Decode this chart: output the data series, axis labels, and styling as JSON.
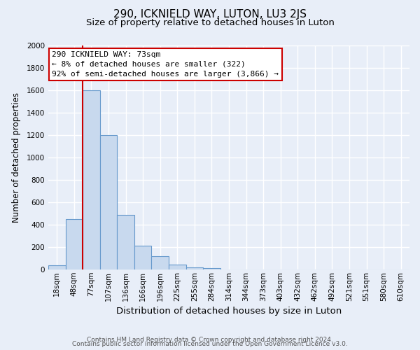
{
  "title": "290, ICKNIELD WAY, LUTON, LU3 2JS",
  "subtitle": "Size of property relative to detached houses in Luton",
  "xlabel": "Distribution of detached houses by size in Luton",
  "ylabel": "Number of detached properties",
  "bar_labels": [
    "18sqm",
    "48sqm",
    "77sqm",
    "107sqm",
    "136sqm",
    "166sqm",
    "196sqm",
    "225sqm",
    "255sqm",
    "284sqm",
    "314sqm",
    "344sqm",
    "373sqm",
    "403sqm",
    "432sqm",
    "462sqm",
    "492sqm",
    "521sqm",
    "551sqm",
    "580sqm",
    "610sqm"
  ],
  "bar_values": [
    35,
    450,
    1600,
    1200,
    490,
    210,
    120,
    45,
    20,
    15,
    0,
    0,
    0,
    0,
    0,
    0,
    0,
    0,
    0,
    0,
    0
  ],
  "bar_color": "#c8d9ee",
  "bar_edge_color": "#6699cc",
  "vline_color": "#cc0000",
  "ylim": [
    0,
    2000
  ],
  "annotation_title": "290 ICKNIELD WAY: 73sqm",
  "annotation_line1": "← 8% of detached houses are smaller (322)",
  "annotation_line2": "92% of semi-detached houses are larger (3,866) →",
  "annotation_box_color": "#ffffff",
  "annotation_border_color": "#cc0000",
  "bg_color": "#e8eef8",
  "plot_bg_color": "#e8eef8",
  "grid_color": "#ffffff",
  "footer_line1": "Contains HM Land Registry data © Crown copyright and database right 2024.",
  "footer_line2": "Contains public sector information licensed under the Open Government Licence v3.0.",
  "title_fontsize": 11,
  "subtitle_fontsize": 9.5,
  "xlabel_fontsize": 9.5,
  "ylabel_fontsize": 8.5,
  "tick_fontsize": 7.5,
  "annotation_fontsize": 8,
  "footer_fontsize": 6.5
}
